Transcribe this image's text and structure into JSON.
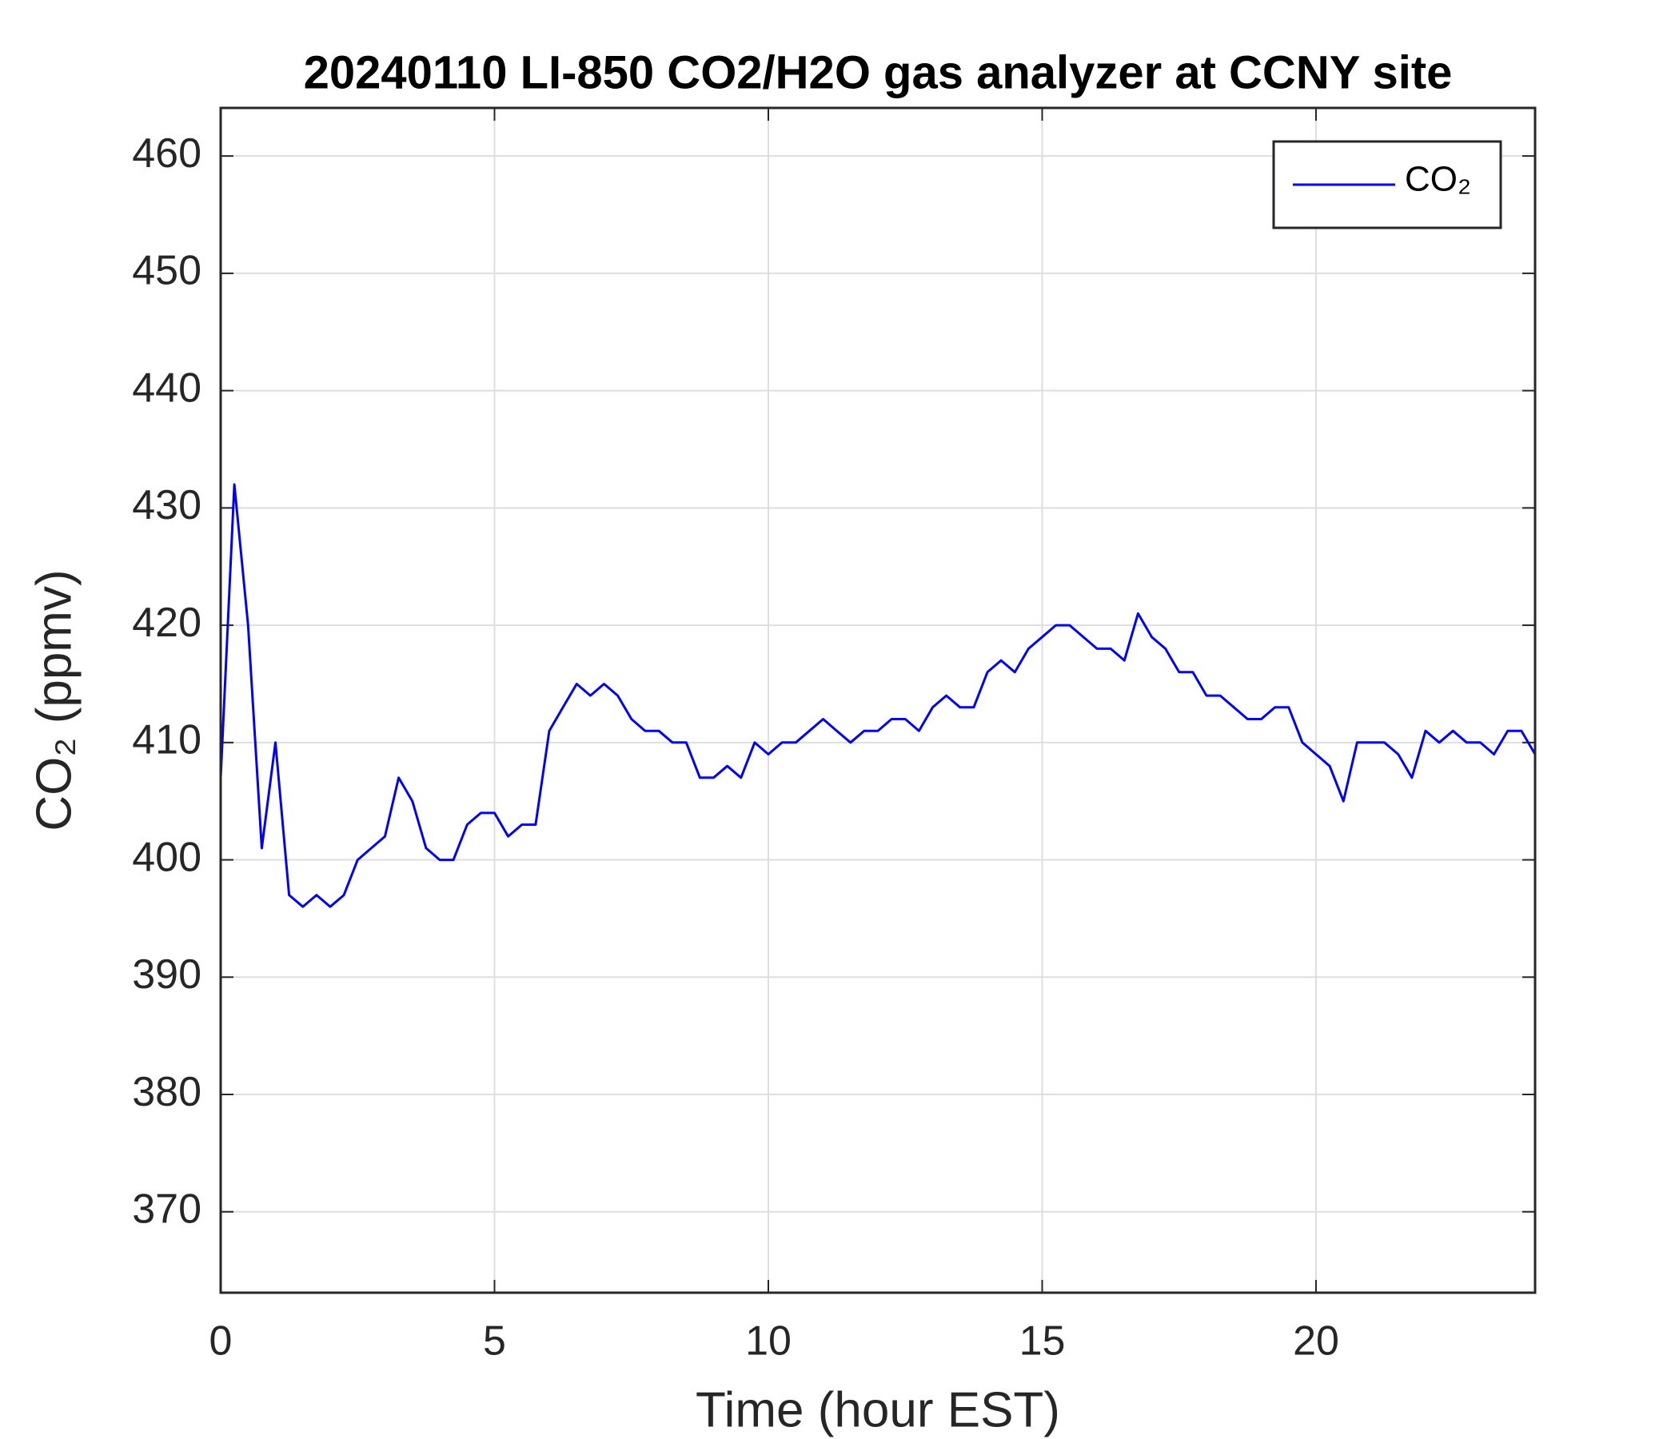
{
  "chart_data": {
    "type": "line",
    "title": "20240110 LI-850 CO2/H2O gas analyzer at CCNY site",
    "xlabel": "Time (hour EST)",
    "ylabel": "CO₂ (ppmv)",
    "xlim": [
      0,
      24
    ],
    "xticks": [
      0,
      5,
      10,
      15,
      20
    ],
    "ylim": [
      363.1,
      464.1
    ],
    "yticks": [
      370,
      380,
      390,
      400,
      410,
      420,
      430,
      440,
      450,
      460
    ],
    "grid": true,
    "legend": "upper right",
    "x": [
      0,
      0.25,
      0.5,
      0.75,
      1,
      1.25,
      1.5,
      1.75,
      2,
      2.25,
      2.5,
      2.75,
      3,
      3.25,
      3.5,
      3.75,
      4,
      4.25,
      4.5,
      4.75,
      5,
      5.25,
      5.5,
      5.75,
      6,
      6.25,
      6.5,
      6.75,
      7,
      7.25,
      7.5,
      7.75,
      8,
      8.25,
      8.5,
      8.75,
      9,
      9.25,
      9.5,
      9.75,
      10,
      10.25,
      10.5,
      10.75,
      11,
      11.25,
      11.5,
      11.75,
      12,
      12.25,
      12.5,
      12.75,
      13,
      13.25,
      13.5,
      13.75,
      14,
      14.25,
      14.5,
      14.75,
      15,
      15.25,
      15.5,
      15.75,
      16,
      16.25,
      16.5,
      16.75,
      17,
      17.25,
      17.5,
      17.75,
      18,
      18.25,
      18.5,
      18.75,
      19,
      19.25,
      19.5,
      19.75,
      20,
      20.25,
      20.5,
      20.75,
      21,
      21.25,
      21.5,
      21.75,
      22,
      22.25,
      22.5,
      22.75,
      23,
      23.25,
      23.5,
      23.75,
      24
    ],
    "series": [
      {
        "name": "CO₂",
        "color": "#0000ff",
        "values": [
          407,
          432,
          420,
          401,
          410,
          397,
          396,
          397,
          396,
          397,
          400,
          401,
          402,
          407,
          405,
          401,
          400,
          400,
          403,
          404,
          404,
          402,
          403,
          403,
          411,
          413,
          415,
          414,
          415,
          414,
          412,
          411,
          411,
          410,
          410,
          407,
          407,
          408,
          407,
          410,
          409,
          410,
          410,
          411,
          412,
          411,
          410,
          411,
          411,
          412,
          412,
          411,
          413,
          414,
          413,
          413,
          416,
          417,
          416,
          418,
          419,
          420,
          420,
          419,
          418,
          418,
          417,
          421,
          419,
          418,
          416,
          416,
          414,
          414,
          413,
          412,
          412,
          413,
          413,
          410,
          409,
          408,
          405,
          410,
          410,
          410,
          409,
          407,
          411,
          410,
          411,
          410,
          410,
          409,
          411,
          411,
          409
        ]
      }
    ]
  }
}
